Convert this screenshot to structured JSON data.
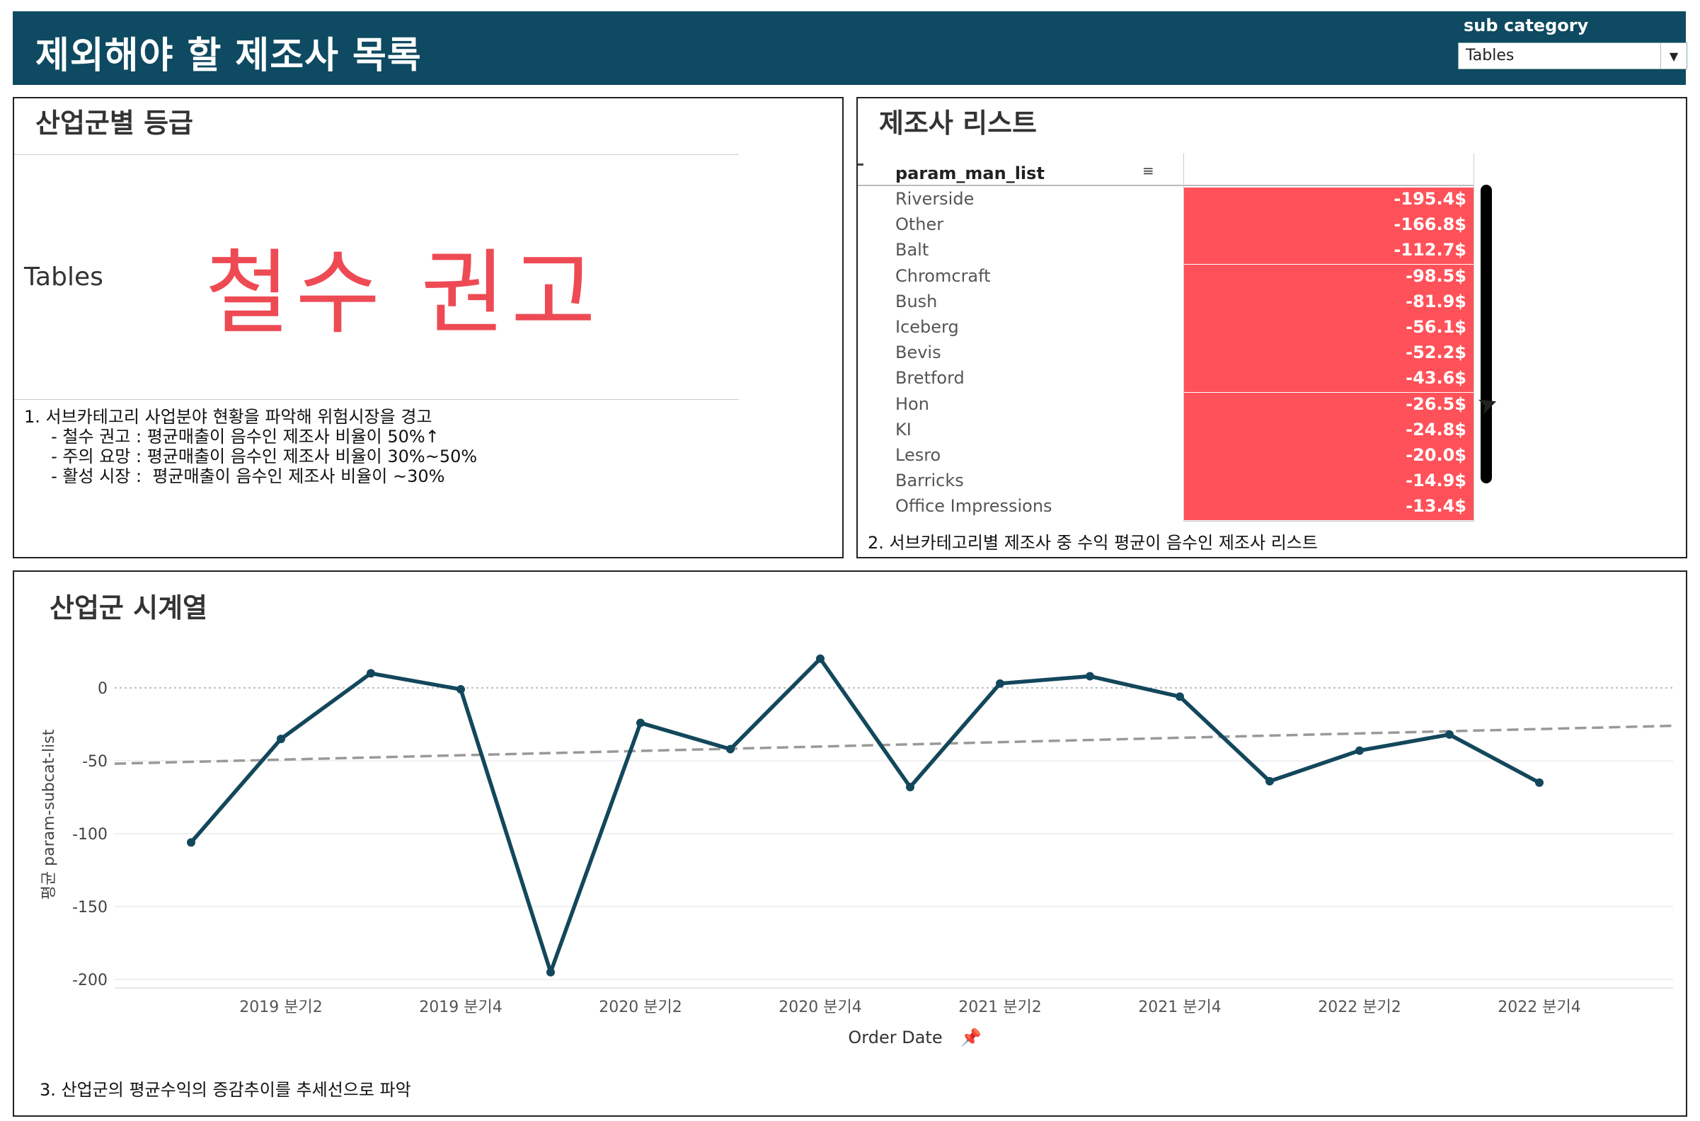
{
  "header": {
    "title": "제외해야 할 제조사 목록",
    "filter_label": "sub category",
    "filter_value": "Tables",
    "bg_color": "#0e4a61"
  },
  "grade_panel": {
    "title": "산업군별 등급",
    "category": "Tables",
    "grade": "철수 권고",
    "grade_color": "#ee4a54",
    "notes": [
      "1. 서브카테고리 사업분야 현황을 파악해 위험시장을 경고",
      "     - 철수 권고 : 평균매출이 음수인 제조사 비율이 50%↑",
      "     - 주의 요망 : 평균매출이 음수인 제조사 비율이 30%~50%",
      "     - 활성 시장 :  평균매출이 음수인 제조사 비율이 ~30%"
    ]
  },
  "manufacturer_panel": {
    "title": "제조사 리스트",
    "column_header": "param_man_list",
    "sort_icon": "sort-descending-icon",
    "bar_color": "#ff5159",
    "rows": [
      {
        "name": "Riverside",
        "value": "-195.4$"
      },
      {
        "name": "Other",
        "value": "-166.8$"
      },
      {
        "name": "Balt",
        "value": "-112.7$"
      },
      {
        "name": "Chromcraft",
        "value": "-98.5$"
      },
      {
        "name": "Bush",
        "value": "-81.9$"
      },
      {
        "name": "Iceberg",
        "value": "-56.1$"
      },
      {
        "name": "Bevis",
        "value": "-52.2$"
      },
      {
        "name": "Bretford",
        "value": "-43.6$"
      },
      {
        "name": "Hon",
        "value": "-26.5$"
      },
      {
        "name": "KI",
        "value": "-24.8$"
      },
      {
        "name": "Lesro",
        "value": "-20.0$"
      },
      {
        "name": "Barricks",
        "value": "-14.9$"
      },
      {
        "name": "Office Impressions",
        "value": "-13.4$"
      }
    ],
    "note": "2. 서브카테고리별 제조사 중 수익 평균이 음수인 제조사 리스트"
  },
  "timeseries_panel": {
    "title": "산업군 시계열",
    "note": "3. 산업군의 평균수익의 증감추이를 추세선으로 파악",
    "pin_icon": "pin-icon"
  },
  "chart_data": {
    "type": "line",
    "title": "산업군 시계열",
    "xlabel": "Order Date",
    "ylabel": "평균 param-subcat-list",
    "x": [
      "2019 분기1",
      "2019 분기2",
      "2019 분기3",
      "2019 분기4",
      "2020 분기1",
      "2020 분기2",
      "2020 분기3",
      "2020 분기4",
      "2021 분기1",
      "2021 분기2",
      "2021 분기3",
      "2021 분기4",
      "2022 분기1",
      "2022 분기2",
      "2022 분기3",
      "2022 분기4"
    ],
    "x_tick_labels": [
      "2019 분기2",
      "2019 분기4",
      "2020 분기2",
      "2020 분기4",
      "2021 분기2",
      "2021 분기4",
      "2022 분기2",
      "2022 분기4"
    ],
    "series": [
      {
        "values": [
          -106,
          -35,
          10,
          -1,
          -195,
          -24,
          -42,
          20,
          -68,
          3,
          8,
          -6,
          -64,
          -43,
          -32,
          -65
        ],
        "color": "#13475c"
      }
    ],
    "trendline": {
      "start": -52,
      "end": -26,
      "style": "dashed",
      "color": "#999999"
    },
    "ylim": [
      -205,
      25
    ],
    "y_ticks": [
      0,
      -50,
      -100,
      -150,
      -200
    ],
    "grid": true,
    "zero_line": "dotted"
  }
}
